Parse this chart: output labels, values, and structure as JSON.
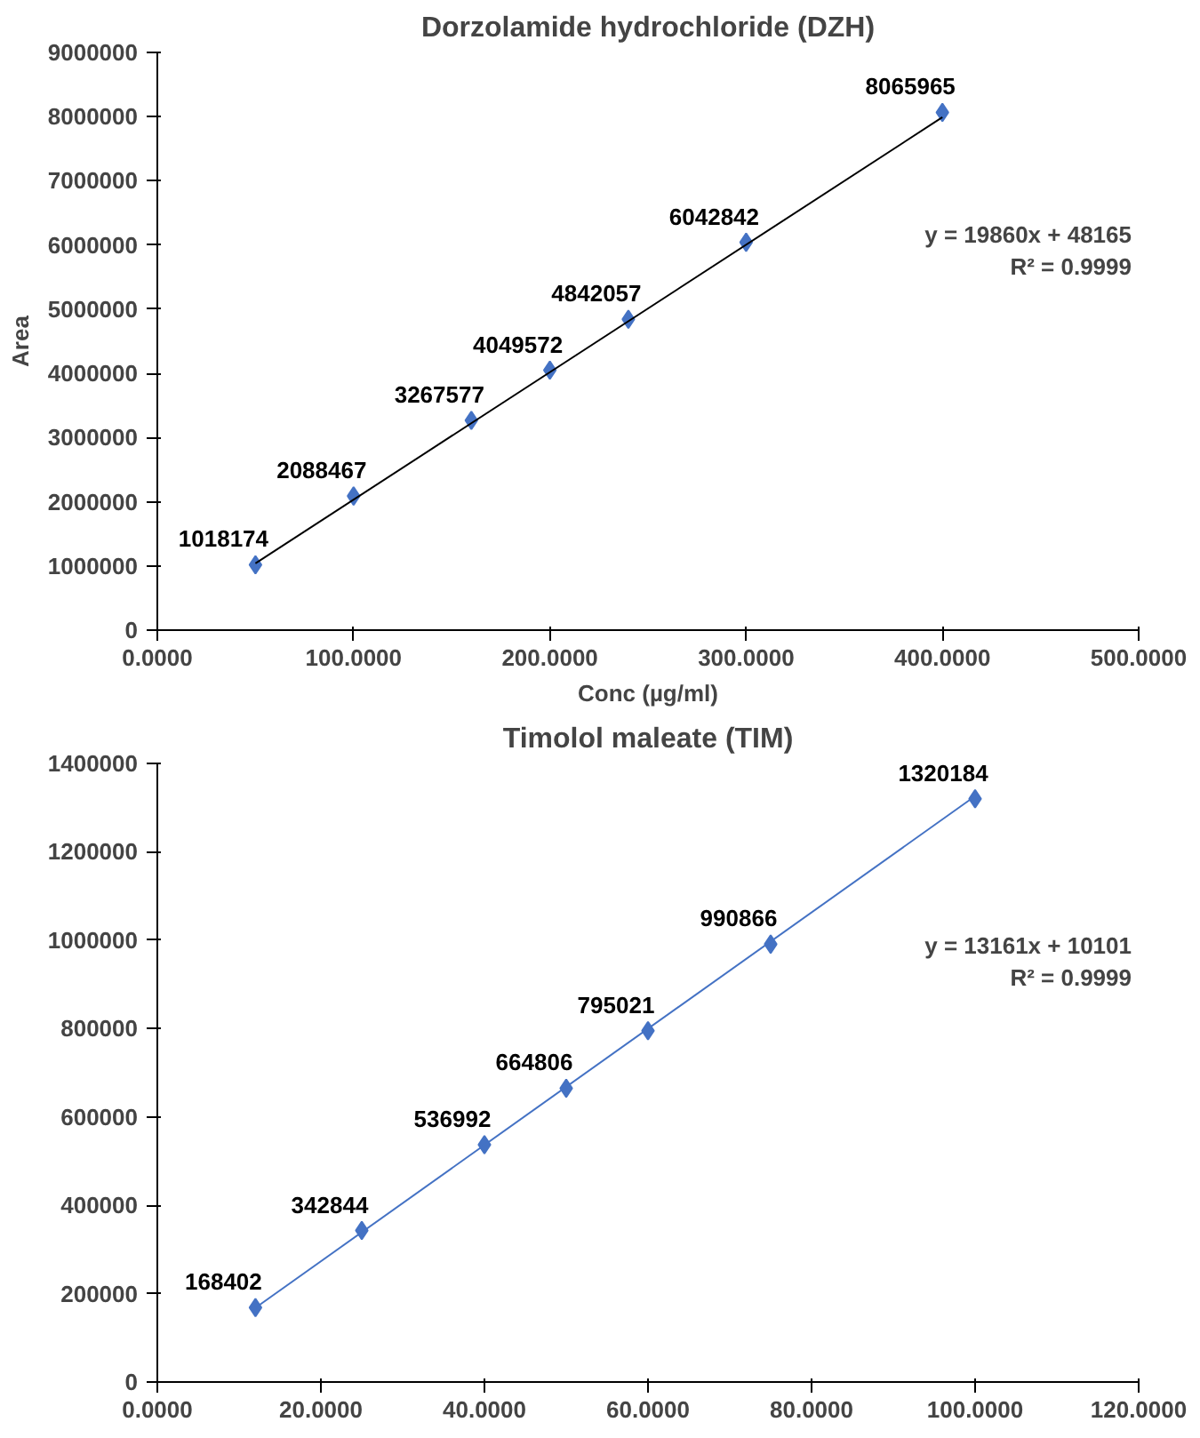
{
  "chart_data": [
    {
      "type": "scatter",
      "title": "Dorzolamide hydrochloride (DZH)",
      "xlabel": "Conc (µg/ml)",
      "ylabel": "Area",
      "x": [
        50,
        100,
        160,
        200,
        240,
        300,
        400
      ],
      "series": [
        {
          "color": "#4472c4",
          "values": [
            1018174,
            2088467,
            3267577,
            4049572,
            4842057,
            6042842,
            8065965
          ],
          "data_labels": true,
          "marker": "diamond"
        },
        {
          "type": "line",
          "color": "#000000",
          "x": [
            50,
            400
          ],
          "values": [
            1040000,
            7990000
          ]
        }
      ],
      "grid": false,
      "xlim": [
        0,
        500
      ],
      "xticks": [
        {
          "value": 0,
          "label": "0.0000"
        },
        {
          "value": 100,
          "label": "100.0000"
        },
        {
          "value": 200,
          "label": "200.0000"
        },
        {
          "value": 300,
          "label": "300.0000"
        },
        {
          "value": 400,
          "label": "400.0000"
        },
        {
          "value": 500,
          "label": "500.0000"
        }
      ],
      "ylim": [
        0,
        9000000
      ],
      "yticks": [
        0,
        1000000,
        2000000,
        3000000,
        4000000,
        5000000,
        6000000,
        7000000,
        8000000,
        9000000
      ],
      "annotations": [
        "y = 19860x + 48165",
        "R² = 0.9999"
      ]
    },
    {
      "type": "scatter",
      "title": "Timolol maleate (TIM)",
      "x": [
        12,
        25,
        40,
        50,
        60,
        75,
        100
      ],
      "series": [
        {
          "color": "#4472c4",
          "values": [
            168402,
            342844,
            536992,
            664806,
            795021,
            990866,
            1320184
          ],
          "data_labels": true,
          "marker": "diamond"
        },
        {
          "type": "line",
          "color": "#4472c4",
          "x": [
            12,
            100
          ],
          "values": [
            168000,
            1326000
          ]
        }
      ],
      "grid": false,
      "xlim": [
        0,
        120
      ],
      "xticks": [
        {
          "value": 0,
          "label": "0.0000"
        },
        {
          "value": 20,
          "label": "20.0000"
        },
        {
          "value": 40,
          "label": "40.0000"
        },
        {
          "value": 60,
          "label": "60.0000"
        },
        {
          "value": 80,
          "label": "80.0000"
        },
        {
          "value": 100,
          "label": "100.0000"
        },
        {
          "value": 120,
          "label": "120.0000"
        }
      ],
      "ylim": [
        0,
        1400000
      ],
      "yticks": [
        0,
        200000,
        400000,
        600000,
        800000,
        1000000,
        1200000,
        1400000
      ],
      "annotations": [
        "y = 13161x + 10101",
        "R² = 0.9999"
      ]
    }
  ]
}
